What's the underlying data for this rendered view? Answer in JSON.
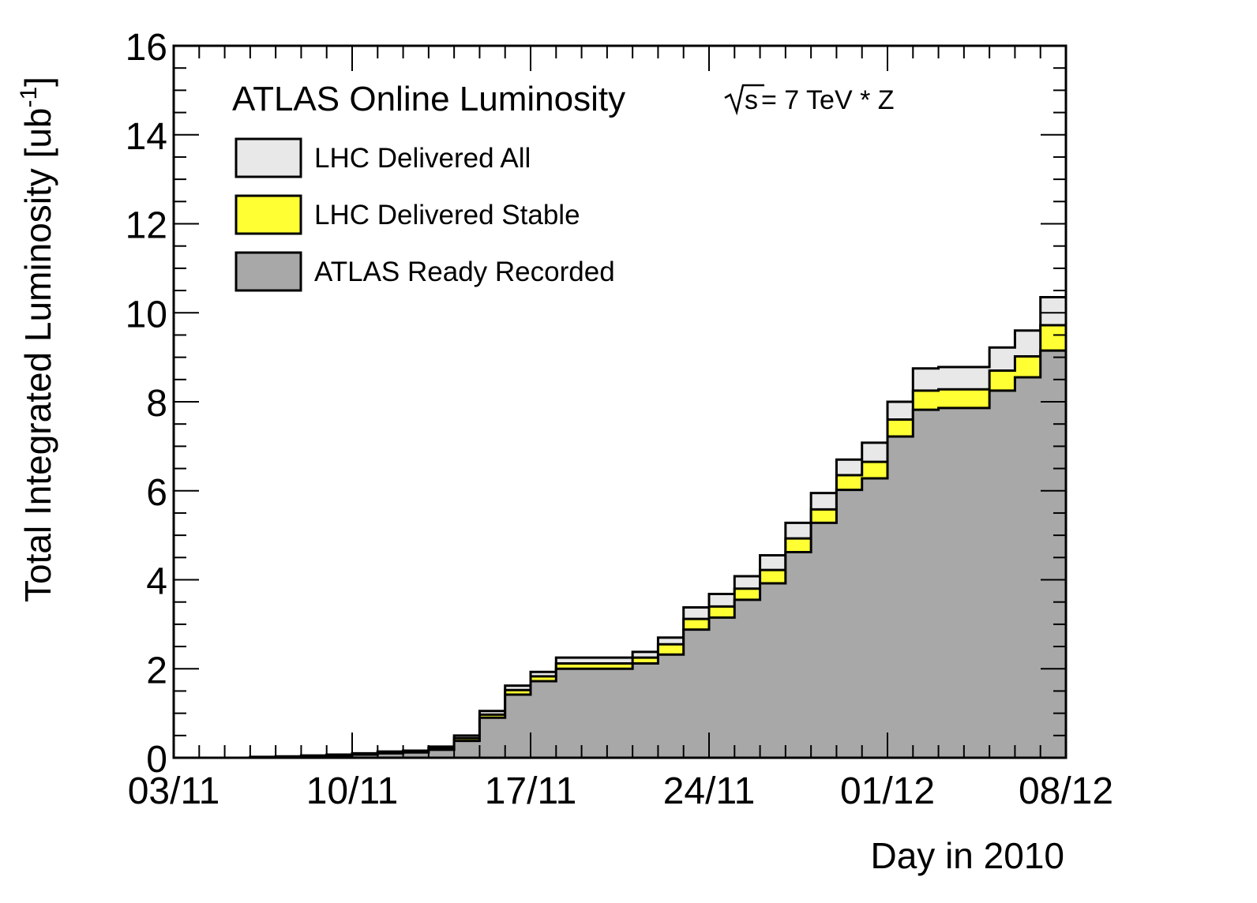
{
  "chart_data": {
    "type": "area",
    "title": "ATLAS Online Luminosity",
    "annotation": {
      "sqrt": "s",
      "rest": " = 7 TeV * Z"
    },
    "xlabel": "Day in 2010",
    "ylabel_main": "Total Integrated Luminosity [ub",
    "ylabel_sup": "-1",
    "ylabel_close": "]",
    "xlim": [
      0,
      35
    ],
    "ylim": [
      0,
      16
    ],
    "yticks": [
      {
        "v": 0,
        "label": "0"
      },
      {
        "v": 2,
        "label": "2"
      },
      {
        "v": 4,
        "label": "4"
      },
      {
        "v": 6,
        "label": "6"
      },
      {
        "v": 8,
        "label": "8"
      },
      {
        "v": 10,
        "label": "10"
      },
      {
        "v": 12,
        "label": "12"
      },
      {
        "v": 14,
        "label": "14"
      },
      {
        "v": 16,
        "label": "16"
      }
    ],
    "xticks": [
      {
        "v": 0,
        "label": "03/11"
      },
      {
        "v": 7,
        "label": "10/11"
      },
      {
        "v": 14,
        "label": "17/11"
      },
      {
        "v": 21,
        "label": "24/11"
      },
      {
        "v": 28,
        "label": "01/12"
      },
      {
        "v": 35,
        "label": "08/12"
      }
    ],
    "colors": {
      "all": "#e8e8e8",
      "stable": "#ffff33",
      "recorded": "#a8a8a8"
    },
    "series": [
      {
        "name": "LHC Delivered All",
        "key": "all",
        "values": [
          0,
          0,
          0,
          0.02,
          0.03,
          0.05,
          0.07,
          0.1,
          0.14,
          0.16,
          0.25,
          0.5,
          1.05,
          1.62,
          1.93,
          2.25,
          2.25,
          2.25,
          2.38,
          2.7,
          3.38,
          3.68,
          4.08,
          4.55,
          5.28,
          5.95,
          6.7,
          7.08,
          8.0,
          8.75,
          8.78,
          8.78,
          9.22,
          9.6,
          10.35
        ]
      },
      {
        "name": "LHC Delivered Stable",
        "key": "stable",
        "values": [
          0,
          0,
          0,
          0.01,
          0.02,
          0.04,
          0.06,
          0.08,
          0.12,
          0.14,
          0.22,
          0.44,
          0.97,
          1.52,
          1.83,
          2.12,
          2.12,
          2.12,
          2.25,
          2.55,
          3.12,
          3.4,
          3.8,
          4.22,
          4.93,
          5.58,
          6.35,
          6.65,
          7.6,
          8.25,
          8.28,
          8.28,
          8.7,
          9.02,
          9.72
        ]
      },
      {
        "name": "ATLAS Ready Recorded",
        "key": "recorded",
        "values": [
          0,
          0,
          0,
          0.01,
          0.02,
          0.03,
          0.05,
          0.07,
          0.1,
          0.12,
          0.18,
          0.38,
          0.9,
          1.42,
          1.72,
          2.0,
          2.0,
          2.0,
          2.12,
          2.32,
          2.88,
          3.15,
          3.55,
          3.92,
          4.62,
          5.28,
          6.02,
          6.28,
          7.22,
          7.82,
          7.86,
          7.86,
          8.25,
          8.55,
          9.15
        ]
      }
    ]
  }
}
